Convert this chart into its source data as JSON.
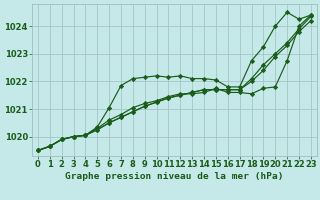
{
  "title": "Graphe pression niveau de la mer (hPa)",
  "bg_color": "#c5e8e8",
  "grid_color": "#9dbfbf",
  "line_color": "#1a5c1a",
  "xlim": [
    -0.5,
    23.5
  ],
  "ylim": [
    1019.3,
    1024.8
  ],
  "yticks": [
    1020,
    1021,
    1022,
    1023,
    1024
  ],
  "xticks": [
    0,
    1,
    2,
    3,
    4,
    5,
    6,
    7,
    8,
    9,
    10,
    11,
    12,
    13,
    14,
    15,
    16,
    17,
    18,
    19,
    20,
    21,
    22,
    23
  ],
  "series": [
    [
      1019.5,
      1019.65,
      1019.9,
      1020.0,
      1020.05,
      1020.35,
      1021.05,
      1021.85,
      1022.1,
      1022.15,
      1022.2,
      1022.15,
      1022.2,
      1022.1,
      1022.1,
      1022.05,
      1021.8,
      1021.8,
      1022.75,
      1023.25,
      1024.0,
      1024.5,
      1024.25,
      1024.4
    ],
    [
      1019.5,
      1019.65,
      1019.9,
      1020.0,
      1020.05,
      1020.3,
      1020.6,
      1020.8,
      1021.05,
      1021.2,
      1021.3,
      1021.45,
      1021.55,
      1021.55,
      1021.6,
      1021.75,
      1021.6,
      1021.6,
      1021.55,
      1021.75,
      1021.8,
      1022.75,
      1024.0,
      1024.4
    ],
    [
      1019.5,
      1019.65,
      1019.9,
      1020.0,
      1020.05,
      1020.25,
      1020.5,
      1020.7,
      1020.9,
      1021.1,
      1021.25,
      1021.4,
      1021.5,
      1021.6,
      1021.7,
      1021.7,
      1021.7,
      1021.7,
      1022.0,
      1022.4,
      1022.9,
      1023.3,
      1023.8,
      1024.2
    ],
    [
      1019.5,
      1019.65,
      1019.9,
      1020.0,
      1020.05,
      1020.25,
      1020.5,
      1020.7,
      1020.9,
      1021.1,
      1021.25,
      1021.4,
      1021.5,
      1021.6,
      1021.7,
      1021.7,
      1021.7,
      1021.7,
      1022.1,
      1022.6,
      1023.0,
      1023.4,
      1023.9,
      1024.35
    ]
  ],
  "marker": "D",
  "markersize": 2.2,
  "linewidth": 0.85,
  "xlabel_fontsize": 6.8,
  "tick_fontsize": 6.0,
  "fig_width": 3.2,
  "fig_height": 2.0,
  "dpi": 100
}
